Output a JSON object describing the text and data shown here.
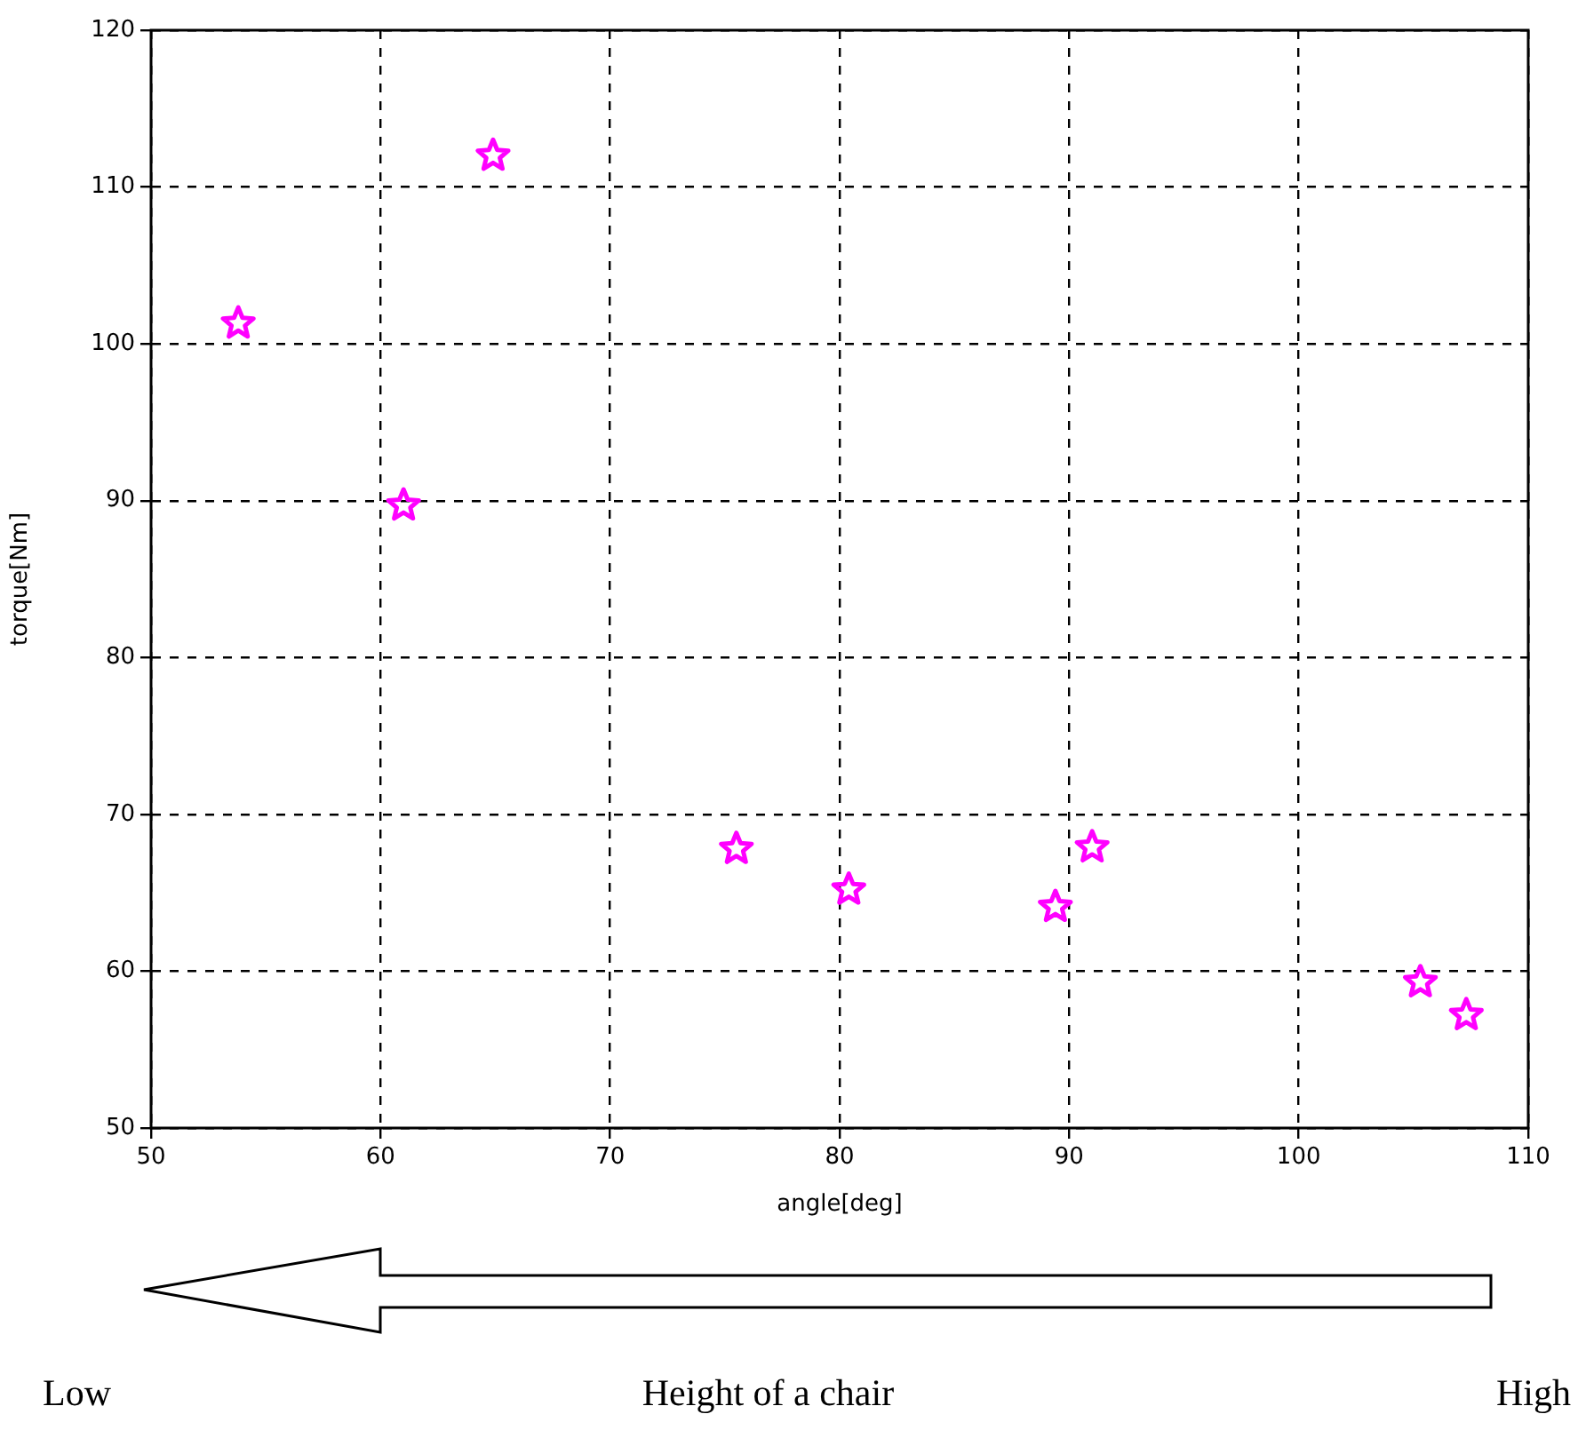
{
  "chart_data": {
    "type": "scatter",
    "xlabel": "angle[deg]",
    "ylabel": "torque[Nm]",
    "x": [
      53.8,
      61.0,
      64.9,
      75.5,
      80.4,
      89.4,
      91.0,
      105.3,
      107.3
    ],
    "series": [
      {
        "color": "#ff00ff",
        "values": [
          101.3,
          89.7,
          112.0,
          67.8,
          65.2,
          64.1,
          67.9,
          59.3,
          57.2
        ]
      }
    ],
    "xlim": [
      50,
      110
    ],
    "xticks": [
      50,
      60,
      70,
      80,
      90,
      100,
      110
    ],
    "ylim": [
      50,
      120
    ],
    "yticks": [
      50,
      60,
      70,
      80,
      90,
      100,
      110,
      120
    ],
    "grid": true,
    "marker": "star",
    "annotations": [
      "Low",
      "Height of a chair",
      "High"
    ]
  }
}
